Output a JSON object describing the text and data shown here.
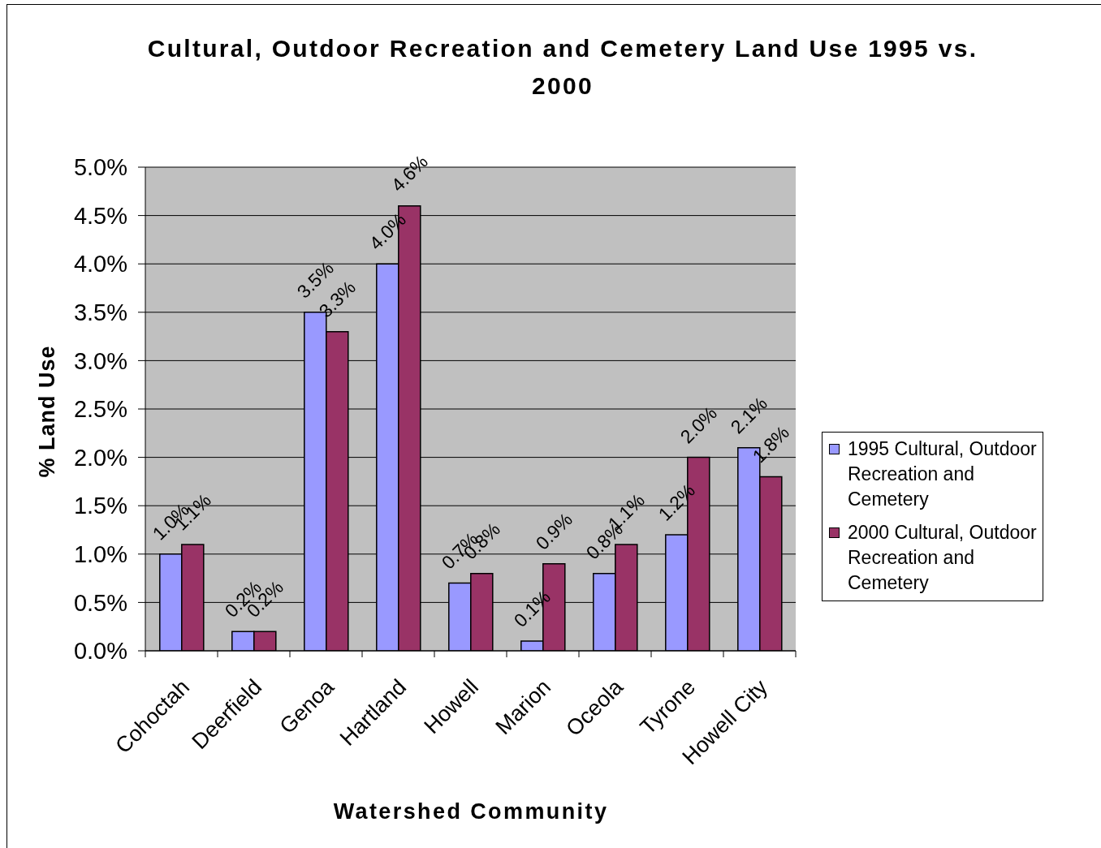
{
  "chart_data": {
    "type": "bar",
    "title": "Cultural, Outdoor Recreation and Cemetery Land Use 1995 vs. 2000",
    "xlabel": "Watershed Community",
    "ylabel": "% Land Use",
    "categories": [
      "Cohoctah",
      "Deerfield",
      "Genoa",
      "Hartland",
      "Howell",
      "Marion",
      "Oceola",
      "Tyrone",
      "Howell City"
    ],
    "series": [
      {
        "name": "1995 Cultural, Outdoor Recreation and Cemetery",
        "color": "#9999ff",
        "values": [
          1.0,
          0.2,
          3.5,
          4.0,
          0.7,
          0.1,
          0.8,
          1.2,
          2.1
        ],
        "value_labels": [
          "1.0%",
          "0.2%",
          "3.5%",
          "4.0%",
          "0.7%",
          "0.1%",
          "0.8%",
          "1.2%",
          "2.1%"
        ]
      },
      {
        "name": "2000 Cultural, Outdoor Recreation and Cemetery",
        "color": "#993366",
        "values": [
          1.1,
          0.2,
          3.3,
          4.6,
          0.8,
          0.9,
          1.1,
          2.0,
          1.8
        ],
        "value_labels": [
          "1.1%",
          "0.2%",
          "3.3%",
          "4.6%",
          "0.8%",
          "0.9%",
          "1.1%",
          "2.0%",
          "1.8%"
        ]
      }
    ],
    "ylim": [
      0,
      5
    ],
    "yticks": [
      {
        "value": 0,
        "label": "0.0%"
      },
      {
        "value": 0.5,
        "label": "0.5%"
      },
      {
        "value": 1,
        "label": "1.0%"
      },
      {
        "value": 1.5,
        "label": "1.5%"
      },
      {
        "value": 2,
        "label": "2.0%"
      },
      {
        "value": 2.5,
        "label": "2.5%"
      },
      {
        "value": 3,
        "label": "3.0%"
      },
      {
        "value": 3.5,
        "label": "3.5%"
      },
      {
        "value": 4,
        "label": "4.0%"
      },
      {
        "value": 4.5,
        "label": "4.5%"
      },
      {
        "value": 5,
        "label": "5.0%"
      }
    ],
    "grid": "y",
    "legend": "right"
  }
}
